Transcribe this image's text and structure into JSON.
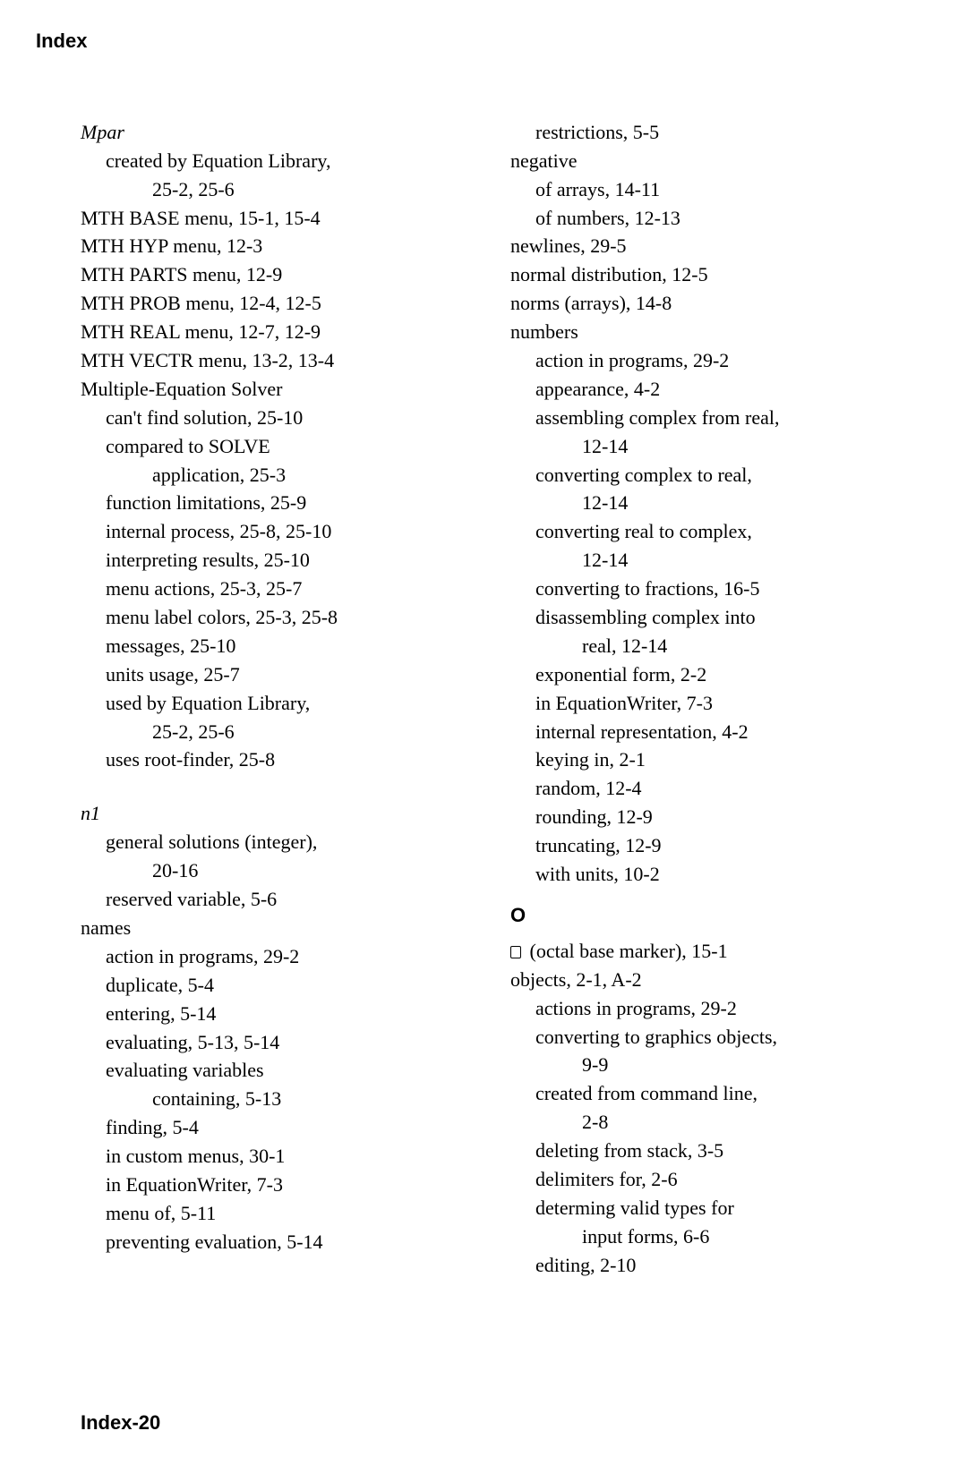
{
  "running_head": "Index",
  "footer": "Index-20",
  "left": [
    {
      "text": "Mpar",
      "indent": "l0",
      "italic": true
    },
    {
      "text": "created by Equation Library,",
      "indent": "l1"
    },
    {
      "text": "25-2, 25-6",
      "indent": "l2"
    },
    {
      "text": "MTH BASE menu, 15-1, 15-4",
      "indent": "l0"
    },
    {
      "text": "MTH HYP menu, 12-3",
      "indent": "l0"
    },
    {
      "text": "MTH PARTS menu, 12-9",
      "indent": "l0"
    },
    {
      "text": "MTH PROB menu, 12-4, 12-5",
      "indent": "l0"
    },
    {
      "text": "MTH REAL menu, 12-7, 12-9",
      "indent": "l0"
    },
    {
      "text": "MTH VECTR menu, 13-2, 13-4",
      "indent": "l0"
    },
    {
      "text": "Multiple-Equation Solver",
      "indent": "l0"
    },
    {
      "text": "can't find solution, 25-10",
      "indent": "l1"
    },
    {
      "text": "compared  to  SOLVE",
      "indent": "l1"
    },
    {
      "text": "application, 25-3",
      "indent": "l2"
    },
    {
      "text": "function limitations, 25-9",
      "indent": "l1"
    },
    {
      "text": "internal process, 25-8, 25-10",
      "indent": "l1"
    },
    {
      "text": "interpreting results, 25-10",
      "indent": "l1"
    },
    {
      "text": "menu actions, 25-3, 25-7",
      "indent": "l1"
    },
    {
      "text": "menu label colors, 25-3, 25-8",
      "indent": "l1"
    },
    {
      "text": "messages, 25-10",
      "indent": "l1"
    },
    {
      "text": "units usage, 25-7",
      "indent": "l1"
    },
    {
      "text": "used by Equation Library,",
      "indent": "l1"
    },
    {
      "text": "25-2, 25-6",
      "indent": "l2"
    },
    {
      "text": "uses root-finder, 25-8",
      "indent": "l1"
    },
    {
      "text": "",
      "indent": "l0",
      "spacer": true
    },
    {
      "text": "n1",
      "indent": "l0",
      "italic": true
    },
    {
      "text": "general solutions (integer),",
      "indent": "l1"
    },
    {
      "text": "20-16",
      "indent": "l2"
    },
    {
      "text": "reserved variable, 5-6",
      "indent": "l1"
    },
    {
      "text": "names",
      "indent": "l0"
    },
    {
      "text": "action in programs, 29-2",
      "indent": "l1"
    },
    {
      "text": "duplicate, 5-4",
      "indent": "l1"
    },
    {
      "text": "entering, 5-14",
      "indent": "l1"
    },
    {
      "text": "evaluating, 5-13, 5-14",
      "indent": "l1"
    },
    {
      "text": "evaluating  variables",
      "indent": "l1"
    },
    {
      "text": "containing, 5-13",
      "indent": "l2"
    },
    {
      "text": "finding, 5-4",
      "indent": "l1"
    },
    {
      "text": "in custom menus, 30-1",
      "indent": "l1"
    },
    {
      "text": "in EquationWriter, 7-3",
      "indent": "l1"
    },
    {
      "text": "menu of, 5-11",
      "indent": "l1"
    },
    {
      "text": "preventing evaluation, 5-14",
      "indent": "l1"
    }
  ],
  "right": [
    {
      "text": "restrictions, 5-5",
      "indent": "l1"
    },
    {
      "text": "negative",
      "indent": "l0"
    },
    {
      "text": "of arrays, 14-11",
      "indent": "l1"
    },
    {
      "text": "of numbers, 12-13",
      "indent": "l1"
    },
    {
      "text": "newlines, 29-5",
      "indent": "l0"
    },
    {
      "text": "normal distribution, 12-5",
      "indent": "l0"
    },
    {
      "text": "norms (arrays), 14-8",
      "indent": "l0"
    },
    {
      "text": "numbers",
      "indent": "l0"
    },
    {
      "text": "action in programs, 29-2",
      "indent": "l1"
    },
    {
      "text": "appearance, 4-2",
      "indent": "l1"
    },
    {
      "text": "assembling complex from real,",
      "indent": "l1"
    },
    {
      "text": "12-14",
      "indent": "l2"
    },
    {
      "text": "converting complex to real,",
      "indent": "l1"
    },
    {
      "text": "12-14",
      "indent": "l2"
    },
    {
      "text": "converting real to complex,",
      "indent": "l1"
    },
    {
      "text": "12-14",
      "indent": "l2"
    },
    {
      "text": "converting to fractions, 16-5",
      "indent": "l1"
    },
    {
      "text": "disassembling complex into",
      "indent": "l1"
    },
    {
      "text": "real, 12-14",
      "indent": "l2"
    },
    {
      "text": "exponential form, 2-2",
      "indent": "l1"
    },
    {
      "text": "in EquationWriter, 7-3",
      "indent": "l1"
    },
    {
      "text": "internal representation, 4-2",
      "indent": "l1"
    },
    {
      "text": "keying in, 2-1",
      "indent": "l1"
    },
    {
      "text": "random, 12-4",
      "indent": "l1"
    },
    {
      "text": "rounding, 12-9",
      "indent": "l1"
    },
    {
      "text": "truncating, 12-9",
      "indent": "l1"
    },
    {
      "text": "with units, 10-2",
      "indent": "l1"
    },
    {
      "text": "O",
      "section": true
    },
    {
      "text": "(octal base marker), 15-1",
      "indent": "l0",
      "octal": true
    },
    {
      "text": "objects, 2-1, A-2",
      "indent": "l0"
    },
    {
      "text": "actions in programs, 29-2",
      "indent": "l1"
    },
    {
      "text": "converting to graphics objects,",
      "indent": "l1"
    },
    {
      "text": "9-9",
      "indent": "l2"
    },
    {
      "text": "created from command line,",
      "indent": "l1"
    },
    {
      "text": "2-8",
      "indent": "l2"
    },
    {
      "text": "deleting from stack, 3-5",
      "indent": "l1"
    },
    {
      "text": "delimiters for, 2-6",
      "indent": "l1"
    },
    {
      "text": "determing valid types for",
      "indent": "l1"
    },
    {
      "text": "input forms, 6-6",
      "indent": "l2"
    },
    {
      "text": "editing, 2-10",
      "indent": "l1"
    }
  ]
}
